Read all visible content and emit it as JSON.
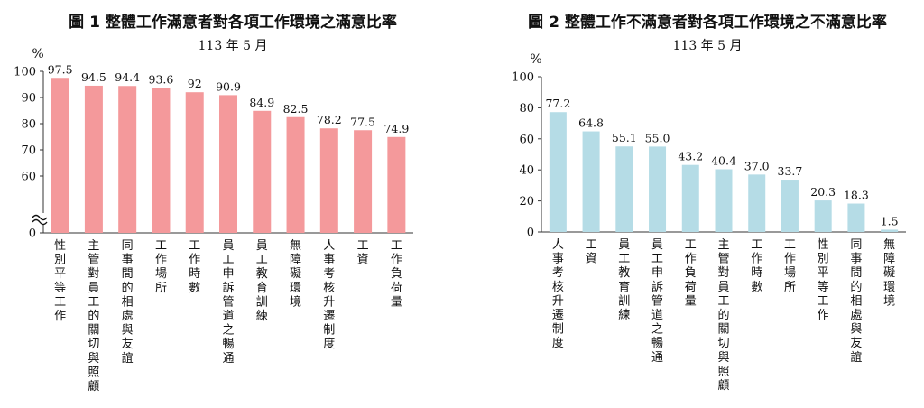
{
  "chart_data": [
    {
      "type": "bar",
      "title": "圖 1  整體工作滿意者對各項工作環境之滿意比率",
      "subtitle": "113 年 5 月",
      "ylabel": "%",
      "ylim": [
        50,
        100
      ],
      "yticks": [
        "0",
        "60",
        "70",
        "80",
        "90",
        "100"
      ],
      "axis_break": true,
      "color": "#f4999b",
      "categories": [
        "性別平等工作",
        "主管對員工的關切與照顧",
        "同事間的相處與友誼",
        "工作場所",
        "工作時數",
        "員工申訴管道之暢通",
        "員工教育訓練",
        "無障礙環境",
        "人事考核升遷制度",
        "工資",
        "工作負荷量"
      ],
      "values": [
        97.5,
        94.5,
        94.4,
        93.6,
        92,
        90.9,
        84.9,
        82.5,
        78.2,
        77.5,
        74.9
      ],
      "labels": [
        "97.5",
        "94.5",
        "94.4",
        "93.6",
        "92",
        "90.9",
        "84.9",
        "82.5",
        "78.2",
        "77.5",
        "74.9"
      ],
      "grid": false
    },
    {
      "type": "bar",
      "title": "圖 2  整體工作不滿意者對各項工作環境之不滿意比率",
      "subtitle": "113 年 5 月",
      "ylabel": "%",
      "ylim": [
        0,
        100
      ],
      "yticks": [
        "0",
        "20",
        "40",
        "60",
        "80",
        "100"
      ],
      "axis_break": false,
      "color": "#b5dce6",
      "categories": [
        "人事考核升遷制度",
        "工資",
        "員工教育訓練",
        "員工申訴管道之暢通",
        "工作負荷量",
        "主管對員工的關切與照顧",
        "工作時數",
        "工作場所",
        "性別平等工作",
        "同事間的相處與友誼",
        "無障礙環境"
      ],
      "values": [
        77.2,
        64.8,
        55.1,
        55.0,
        43.2,
        40.4,
        37.0,
        33.7,
        20.3,
        18.3,
        1.5
      ],
      "labels": [
        "77.2",
        "64.8",
        "55.1",
        "55.0",
        "43.2",
        "40.4",
        "37.0",
        "33.7",
        "20.3",
        "18.3",
        "1.5"
      ],
      "grid": false
    }
  ]
}
